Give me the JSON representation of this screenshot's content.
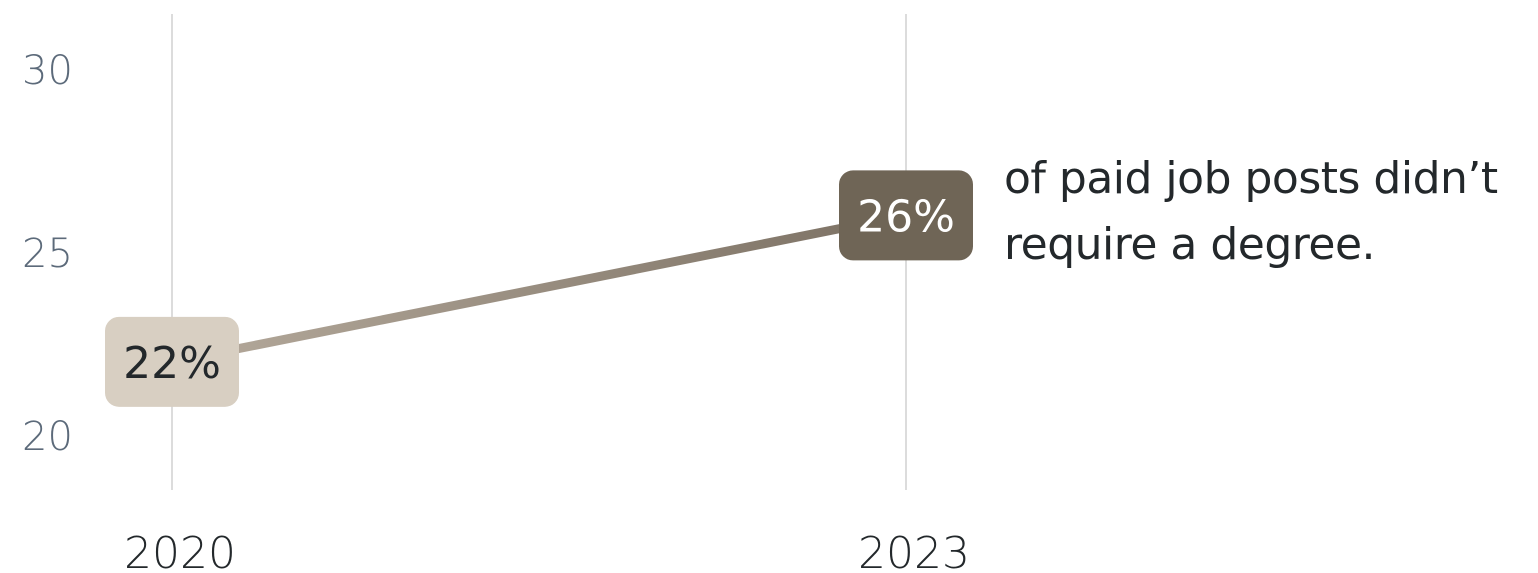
{
  "chart_data": {
    "type": "line",
    "x": [
      "2020",
      "2023"
    ],
    "series": [
      {
        "values": [
          22,
          26
        ]
      }
    ],
    "data_labels": [
      "22%",
      "26%"
    ],
    "y_ticks": [
      "20",
      "25",
      "30"
    ],
    "x_ticks": [
      "2020",
      "2023"
    ],
    "ylim": [
      18.5,
      31.5
    ],
    "grid": "vertical",
    "annotation_lines": [
      "of paid job posts didn’t",
      "require a degree."
    ],
    "colors": {
      "line_start": "#b5aa9c",
      "line_end": "#7b7063",
      "badge_start_fill": "#d8cfc2",
      "badge_start_text": "#23282b",
      "badge_end_fill": "#6f6556",
      "badge_end_text": "#ffffff",
      "gridline": "#dcdcdc",
      "tick_text": "#5c6a7a"
    }
  }
}
